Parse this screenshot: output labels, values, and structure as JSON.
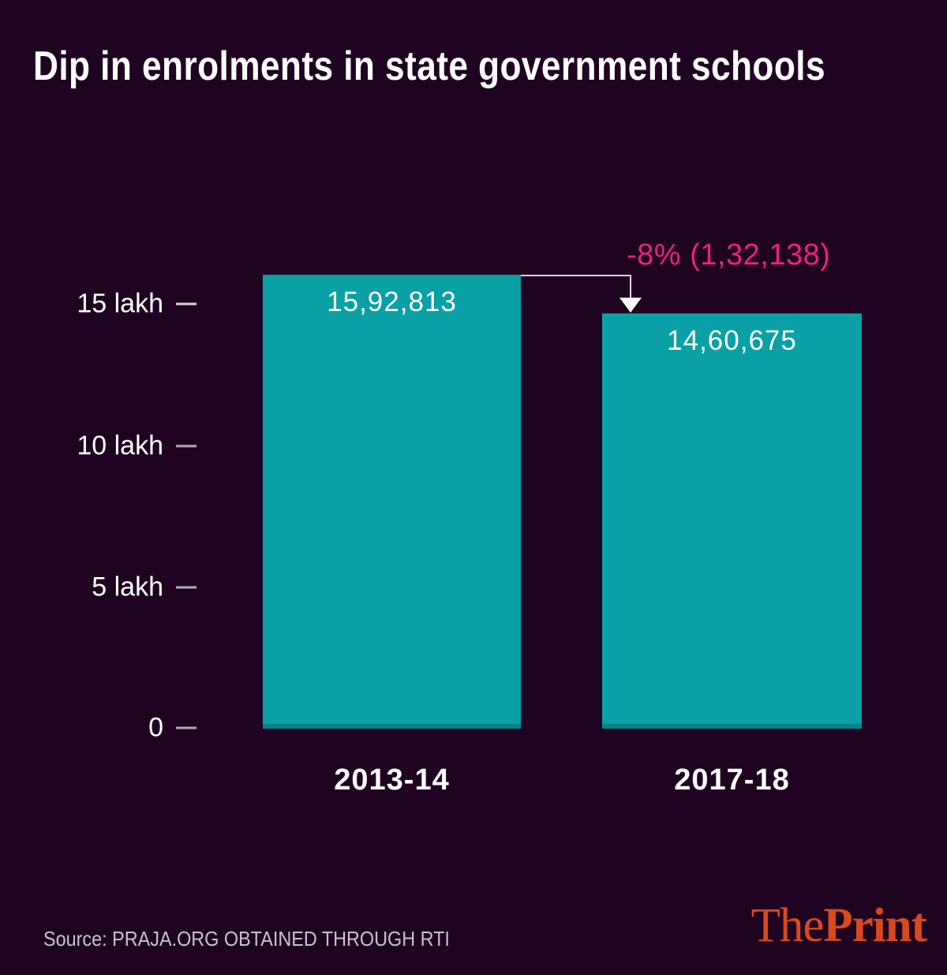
{
  "title": "Dip in enrolments in state government schools",
  "chart_data": {
    "type": "bar",
    "title": "Dip in enrolments in state government schools",
    "categories": [
      "2013-14",
      "2017-18"
    ],
    "values": [
      1592813,
      1460675
    ],
    "bars": [
      {
        "category": "2013-14",
        "value": 1592813,
        "label": "15,92,813"
      },
      {
        "category": "2017-18",
        "value": 1460675,
        "label": "14,60,675"
      }
    ],
    "annotation": {
      "text": "-8% (1,32,138)",
      "change_percent": -8,
      "change_absolute": 132138
    },
    "y_axis": {
      "unit": "lakh",
      "ticks": [
        {
          "label": "15 lakh",
          "value": 1500000
        },
        {
          "label": "10 lakh",
          "value": 1000000
        },
        {
          "label": "5 lakh",
          "value": 500000
        },
        {
          "label": "0",
          "value": 0
        }
      ]
    },
    "ylim": [
      0,
      1600000
    ],
    "grid": false,
    "legend": false
  },
  "colors": {
    "background": "#1f0422",
    "bar": "#09a0a6",
    "annotation_pink": "#ee2176",
    "text_white": "#ffffff",
    "tick_gray": "#b3a8bd",
    "source_gray": "#c8bfd0",
    "logo_orange": "#d8491e"
  },
  "footer": {
    "source": "Source: PRAJA.ORG OBTAINED THROUGH RTI",
    "logo": {
      "part1": "The",
      "part2": "Print"
    }
  }
}
